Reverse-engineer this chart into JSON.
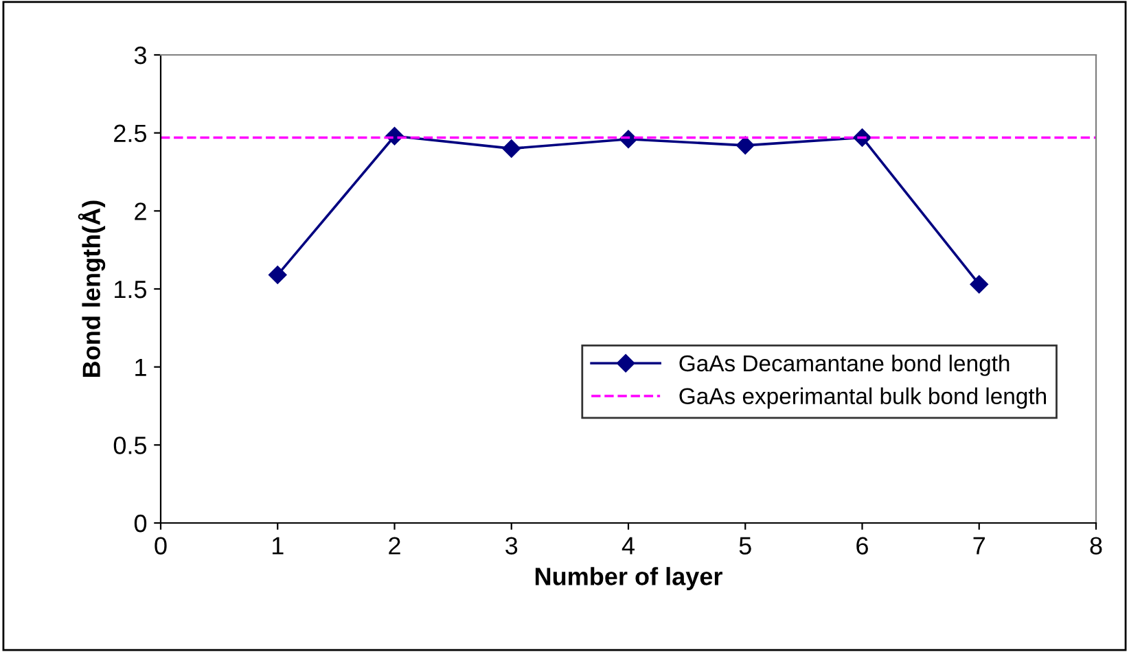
{
  "chart_data": {
    "type": "line",
    "xlabel": "Number of layer",
    "ylabel": "Bond length(Å)",
    "x": [
      1,
      2,
      3,
      4,
      5,
      6,
      7
    ],
    "series": [
      {
        "name": "GaAs Decamantane bond length",
        "color": "#000080",
        "values": [
          1.59,
          2.48,
          2.4,
          2.46,
          2.42,
          2.47,
          1.53
        ]
      }
    ],
    "ref_lines": [
      {
        "axis": "y",
        "value": 2.47,
        "label": "GaAs experimantal bulk bond length",
        "color": "#ff00ff",
        "line_style": "dashed"
      }
    ],
    "xlim": [
      0,
      8
    ],
    "xticks": [
      0,
      1,
      2,
      3,
      4,
      5,
      6,
      7,
      8
    ],
    "ylim": [
      0,
      3
    ],
    "yticks": [
      0,
      0.5,
      1,
      1.5,
      2,
      2.5,
      3
    ],
    "marker": "diamond",
    "line_style": "solid",
    "grid": false,
    "legend": "bottom right"
  }
}
